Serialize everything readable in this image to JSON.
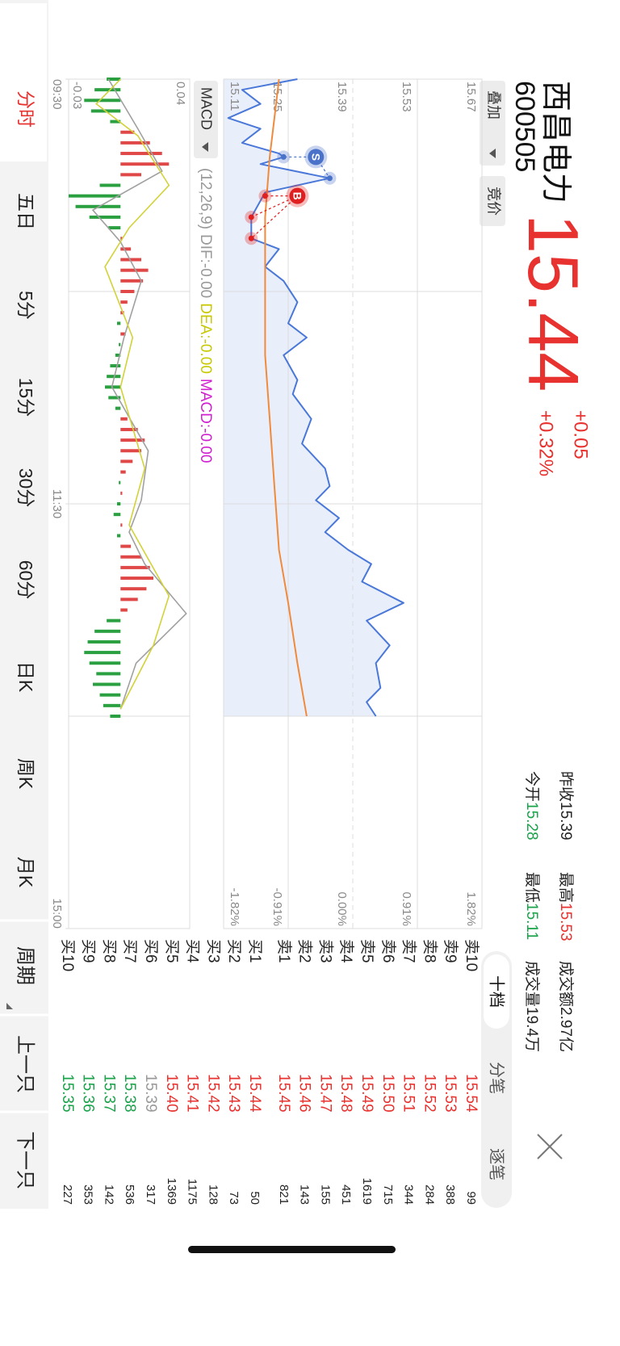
{
  "header": {
    "name": "西昌电力",
    "code": "600505",
    "price": "15.44",
    "change": "+0.05",
    "change_pct": "+0.32%",
    "buttons": [
      "叠加",
      "竞价"
    ]
  },
  "stats": [
    {
      "label": "昨收",
      "value": "15.39",
      "color": "#222"
    },
    {
      "label": "最高",
      "value": "15.53",
      "color": "#e8322f"
    },
    {
      "label": "成交额",
      "value": "2.97亿",
      "color": "#222"
    },
    {
      "label": "今开",
      "value": "15.28",
      "color": "#1aa34a"
    },
    {
      "label": "最低",
      "value": "15.11",
      "color": "#1aa34a"
    },
    {
      "label": "成交量",
      "value": "19.4万",
      "color": "#222"
    }
  ],
  "book_tabs": [
    "十档",
    "分笔",
    "逐笔"
  ],
  "order_book": {
    "asks": [
      {
        "label": "卖10",
        "price": "15.54",
        "volume": "99"
      },
      {
        "label": "卖9",
        "price": "15.53",
        "volume": "388"
      },
      {
        "label": "卖8",
        "price": "15.52",
        "volume": "284"
      },
      {
        "label": "卖7",
        "price": "15.51",
        "volume": "344"
      },
      {
        "label": "卖6",
        "price": "15.50",
        "volume": "715"
      },
      {
        "label": "卖5",
        "price": "15.49",
        "volume": "1619"
      },
      {
        "label": "卖4",
        "price": "15.48",
        "volume": "451"
      },
      {
        "label": "卖3",
        "price": "15.47",
        "volume": "155"
      },
      {
        "label": "卖2",
        "price": "15.46",
        "volume": "143"
      },
      {
        "label": "卖1",
        "price": "15.45",
        "volume": "821"
      }
    ],
    "bids": [
      {
        "label": "买1",
        "price": "15.44",
        "volume": "50"
      },
      {
        "label": "买2",
        "price": "15.43",
        "volume": "73"
      },
      {
        "label": "买3",
        "price": "15.42",
        "volume": "128"
      },
      {
        "label": "买4",
        "price": "15.41",
        "volume": "1175"
      },
      {
        "label": "买5",
        "price": "15.40",
        "volume": "1369"
      },
      {
        "label": "买6",
        "price": "15.39",
        "volume": "317"
      },
      {
        "label": "买7",
        "price": "15.38",
        "volume": "536"
      },
      {
        "label": "买8",
        "price": "15.37",
        "volume": "142"
      },
      {
        "label": "买9",
        "price": "15.36",
        "volume": "353"
      },
      {
        "label": "买10",
        "price": "15.35",
        "volume": "227"
      }
    ]
  },
  "chart_data": [
    {
      "type": "line",
      "xlim": [
        0,
        240
      ],
      "xgrid": [
        60,
        120,
        180
      ],
      "ylim": [
        15.11,
        15.67
      ],
      "yticks": [
        15.67,
        15.53,
        15.39,
        15.25,
        15.11
      ],
      "reference": 15.39,
      "y2lim": [
        -1.82,
        1.82
      ],
      "y2ticks": [
        {
          "value": 1.82,
          "label": "1.82%"
        },
        {
          "value": 0.91,
          "label": "0.91%"
        },
        {
          "value": 0,
          "label": "0.00%"
        },
        {
          "value": -0.91,
          "label": "-0.91%"
        },
        {
          "value": -1.82,
          "label": "-1.82%"
        }
      ],
      "series": [
        {
          "color": "#4a78d8",
          "area": "#e9eefb",
          "x": [
            0,
            3,
            7,
            11,
            14,
            18,
            21,
            22,
            24,
            28,
            32,
            39,
            45,
            48,
            53,
            57,
            63,
            69,
            73,
            78,
            85,
            89,
            96,
            103,
            110,
            115,
            119,
            124,
            128,
            133,
            137,
            142,
            148,
            153,
            160,
            165,
            172,
            176,
            180
          ],
          "values": [
            15.27,
            15.15,
            15.19,
            15.12,
            15.19,
            15.15,
            15.23,
            15.24,
            15.19,
            15.34,
            15.2,
            15.17,
            15.17,
            15.23,
            15.2,
            15.24,
            15.27,
            15.25,
            15.29,
            15.24,
            15.27,
            15.26,
            15.3,
            15.28,
            15.33,
            15.34,
            15.31,
            15.36,
            15.33,
            15.38,
            15.43,
            15.41,
            15.5,
            15.42,
            15.47,
            15.44,
            15.45,
            15.42,
            15.44
          ]
        },
        {
          "color": "#f08a3c",
          "x": [
            0,
            11,
            22,
            39,
            57,
            78,
            96,
            115,
            133,
            148,
            165,
            180
          ],
          "values": [
            15.23,
            15.22,
            15.21,
            15.2,
            15.2,
            15.2,
            15.21,
            15.22,
            15.23,
            15.25,
            15.27,
            15.29
          ]
        }
      ],
      "markers": [
        {
          "label": "S",
          "color": "#4a72c9",
          "x": [
            22,
            28
          ],
          "values": [
            15.24,
            15.34
          ]
        },
        {
          "label": "B",
          "color": "#e02020",
          "x": [
            33,
            39,
            45
          ],
          "values": [
            15.2,
            15.17,
            15.17
          ]
        }
      ]
    },
    {
      "type": "macd",
      "indicator": "MACD",
      "params": "(12,26,9)",
      "readouts": [
        {
          "text": "DIF:-0.00",
          "color": "#999999"
        },
        {
          "text": "DEA:-0.00",
          "color": "#c8c800"
        },
        {
          "text": "MACD:-0.00",
          "color": "#d020d0"
        }
      ],
      "xlim": [
        0,
        240
      ],
      "xgrid": [
        60,
        120,
        180
      ],
      "xticks": [
        {
          "value": 0,
          "label": "09:30"
        },
        {
          "value": 120,
          "label": "11:30"
        },
        {
          "value": 240,
          "label": "15:00"
        }
      ],
      "ylim": [
        -0.03,
        0.04
      ],
      "yticks": [
        0.04,
        -0.03
      ],
      "up_color": "#e04848",
      "down_color": "#2aa040",
      "x": [
        0,
        3,
        6,
        9,
        12,
        15,
        18,
        21,
        24,
        27,
        30,
        33,
        36,
        39,
        42,
        45,
        48,
        51,
        54,
        57,
        60,
        63,
        66,
        69,
        72,
        75,
        78,
        81,
        84,
        87,
        90,
        93,
        96,
        99,
        102,
        105,
        108,
        111,
        114,
        117,
        120,
        123,
        126,
        129,
        132,
        135,
        138,
        141,
        144,
        147,
        150,
        153,
        156,
        159,
        162,
        165,
        168,
        171,
        174,
        177,
        180
      ],
      "values": [
        -0.008,
        -0.015,
        -0.021,
        -0.017,
        -0.006,
        0.008,
        0.017,
        0.024,
        0.028,
        0.012,
        -0.012,
        -0.03,
        -0.026,
        -0.018,
        -0.007,
        0.001,
        0.006,
        0.012,
        0.016,
        0.013,
        0.008,
        0.004,
        0.002,
        -0.002,
        0.003,
        -0.001,
        -0.003,
        -0.006,
        -0.008,
        -0.009,
        -0.007,
        -0.003,
        0.004,
        0.01,
        0.014,
        0.012,
        0.007,
        0.003,
        -0.001,
        0.001,
        -0.002,
        -0.004,
        0.001,
        -0.002,
        0.006,
        0.012,
        0.017,
        0.019,
        0.015,
        0.01,
        0.004,
        -0.008,
        -0.015,
        -0.019,
        -0.021,
        -0.018,
        -0.014,
        -0.016,
        -0.012,
        -0.01,
        -0.006
      ],
      "series": [
        {
          "color": "#a0a0a0",
          "x": [
            0,
            14,
            26,
            37,
            46,
            57,
            73,
            87,
            105,
            119,
            128,
            137,
            151,
            165,
            178
          ],
          "values": [
            -0.007,
            0.01,
            0.024,
            -0.016,
            0.0,
            0.012,
            0.002,
            -0.005,
            0.016,
            0.012,
            0.005,
            0.014,
            0.038,
            0.009,
            0.0
          ]
        },
        {
          "color": "#d2d23a",
          "x": [
            0,
            7,
            16,
            30,
            42,
            53,
            73,
            87,
            110,
            126,
            146,
            160,
            178
          ],
          "values": [
            0.0,
            -0.014,
            0.01,
            0.028,
            0.005,
            -0.009,
            0.007,
            0.0,
            0.014,
            0.005,
            0.028,
            0.019,
            0.0
          ]
        }
      ]
    }
  ],
  "period_tabs": [
    "分时",
    "五日",
    "5分",
    "15分",
    "30分",
    "60分",
    "日K",
    "周K",
    "月K"
  ],
  "bottom_actions": [
    "周期",
    "上一只",
    "下一只"
  ]
}
